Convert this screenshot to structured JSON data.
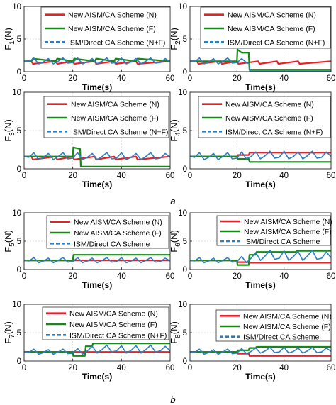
{
  "figure_labels": [
    "a",
    "b"
  ],
  "chart_data": [
    {
      "type": "line",
      "title": "",
      "ylabel": "F1(N)",
      "ylabel_main": "F",
      "ylabel_sub": "1",
      "ylabel_unit": "(N)",
      "xlabel": "Time(s)",
      "xlim": [
        0,
        60
      ],
      "ylim": [
        0,
        10
      ],
      "xticks": [
        "0",
        "20",
        "40",
        "60"
      ],
      "yticks": [
        "0",
        "5",
        "10"
      ],
      "grid": true,
      "legend": "top-right",
      "series": [
        {
          "name": "New AISM/CA Scheme (N)",
          "color": "#e8202a",
          "x": [
            0,
            3,
            3.6,
            13,
            13.6,
            20,
            20.6,
            29,
            29.6,
            37,
            37.6,
            46,
            46.6,
            60
          ],
          "y": [
            1.6,
            1.6,
            1.2,
            1.6,
            1.2,
            1.6,
            1.2,
            1.6,
            1.2,
            1.6,
            1.2,
            1.6,
            1.2,
            1.6
          ]
        },
        {
          "name": "New AISM/CA Scheme (F)",
          "color": "#138a13",
          "x": [
            0,
            3,
            3.6,
            13,
            13.6,
            20,
            20.6,
            29,
            29.6,
            37,
            37.6,
            46,
            46.6,
            60
          ],
          "y": [
            1.6,
            1.6,
            2.0,
            1.6,
            2.0,
            1.6,
            2.0,
            1.6,
            2.0,
            1.6,
            2.0,
            1.6,
            2.0,
            1.6
          ]
        },
        {
          "name": "ISM/Direct CA Scheme  (N+F)",
          "color": "#2a7fc1",
          "x": [
            0,
            2,
            4,
            6,
            8,
            10,
            12,
            14,
            16,
            18,
            20,
            22,
            24,
            26,
            28,
            30,
            32,
            34,
            36,
            38,
            40,
            42,
            44,
            46,
            48,
            50,
            52,
            54,
            56,
            58,
            60
          ],
          "y": [
            1.6,
            1.5,
            2.1,
            1.2,
            1.5,
            2.0,
            1.2,
            1.6,
            2.1,
            1.3,
            1.4,
            2.1,
            1.2,
            1.5,
            2.0,
            1.2,
            1.6,
            2.1,
            1.3,
            1.4,
            2.1,
            1.2,
            1.5,
            2.0,
            1.2,
            1.6,
            2.1,
            1.3,
            1.4,
            2.0,
            1.5
          ]
        }
      ]
    },
    {
      "type": "line",
      "title": "",
      "ylabel": "F2(N)",
      "ylabel_main": "F",
      "ylabel_sub": "2",
      "ylabel_unit": "(N)",
      "xlabel": "Time(s)",
      "xlim": [
        0,
        60
      ],
      "ylim": [
        0,
        10
      ],
      "xticks": [
        "0",
        "20",
        "40",
        "60"
      ],
      "yticks": [
        "0",
        "5",
        "10"
      ],
      "grid": true,
      "legend": "top-right",
      "series": [
        {
          "name": "New AISM/CA Scheme (N)",
          "color": "#e8202a",
          "x": [
            0,
            3,
            3.6,
            13,
            13.6,
            20,
            20.6,
            29,
            29.6,
            37,
            37.6,
            46,
            46.6,
            60
          ],
          "y": [
            1.6,
            1.6,
            1.2,
            1.6,
            1.2,
            1.6,
            1.2,
            1.6,
            1.2,
            1.6,
            1.2,
            1.6,
            1.2,
            1.6
          ]
        },
        {
          "name": "New AISM/CA Scheme (F)",
          "color": "#138a13",
          "x": [
            0,
            20,
            20.2,
            22,
            22.2,
            25,
            25.3,
            60
          ],
          "y": [
            1.6,
            1.6,
            3.4,
            2.9,
            2.9,
            2.9,
            0.3,
            0.3
          ]
        },
        {
          "name": "ISM/Direct CA Scheme  (N+F)",
          "color": "#2a7fc1",
          "x": [
            0,
            2,
            4,
            6,
            8,
            10,
            12,
            14,
            16,
            18,
            20,
            22,
            24,
            25.2,
            25.4,
            28,
            32,
            36,
            40,
            44,
            48,
            52,
            56,
            60
          ],
          "y": [
            1.6,
            1.5,
            2.1,
            1.2,
            1.5,
            2.0,
            1.2,
            1.6,
            2.1,
            1.3,
            1.4,
            2.0,
            1.4,
            1.2,
            0.1,
            0.1,
            0.1,
            0.1,
            0.1,
            0.1,
            0.1,
            0.1,
            0.1,
            0.1
          ]
        }
      ]
    },
    {
      "type": "line",
      "title": "",
      "ylabel": "F3(N)",
      "ylabel_main": "F",
      "ylabel_sub": "3",
      "ylabel_unit": "(N)",
      "xlabel": "Time(s)",
      "xlim": [
        0,
        60
      ],
      "ylim": [
        0,
        10
      ],
      "xticks": [
        "0",
        "20",
        "40",
        "60"
      ],
      "yticks": [
        "0",
        "5",
        "10"
      ],
      "grid": true,
      "legend": "top-right",
      "series": [
        {
          "name": "New AISM/CA Scheme (N)",
          "color": "#e8202a",
          "x": [
            0,
            3,
            3.6,
            13,
            13.6,
            20,
            20.6,
            29,
            29.6,
            37,
            37.6,
            46,
            46.6,
            60
          ],
          "y": [
            1.6,
            1.6,
            1.2,
            1.6,
            1.2,
            1.6,
            1.2,
            1.6,
            1.2,
            1.6,
            1.2,
            1.6,
            1.2,
            1.6
          ]
        },
        {
          "name": "New AISM/CA Scheme (F)",
          "color": "#138a13",
          "x": [
            0,
            20,
            20.2,
            23,
            23.3,
            60
          ],
          "y": [
            1.6,
            1.6,
            2.8,
            2.6,
            0.3,
            0.3
          ]
        },
        {
          "name": "ISM/Direct CA Scheme  (N+F)",
          "color": "#2a7fc1",
          "x": [
            0,
            2,
            4,
            6,
            8,
            10,
            12,
            14,
            16,
            18,
            20,
            22,
            24,
            26,
            28,
            30,
            32,
            34,
            36,
            38,
            40,
            42,
            44,
            46,
            48,
            50,
            52,
            54,
            56,
            58,
            60
          ],
          "y": [
            1.6,
            1.5,
            2.1,
            1.2,
            1.5,
            2.0,
            1.2,
            1.6,
            2.1,
            1.3,
            1.4,
            2.1,
            1.2,
            1.5,
            2.0,
            1.2,
            1.6,
            2.1,
            1.3,
            1.4,
            2.1,
            1.2,
            1.5,
            2.0,
            1.2,
            1.6,
            2.1,
            1.3,
            1.4,
            2.0,
            1.5
          ]
        }
      ]
    },
    {
      "type": "line",
      "title": "",
      "ylabel": "F4(N)",
      "ylabel_main": "F",
      "ylabel_sub": "4",
      "ylabel_unit": "(N)",
      "xlabel": "Time(s)",
      "xlim": [
        0,
        60
      ],
      "ylim": [
        0,
        10
      ],
      "xticks": [
        "0",
        "20",
        "40",
        "60"
      ],
      "yticks": [
        "0",
        "5",
        "10"
      ],
      "grid": true,
      "legend": "top-right",
      "series": [
        {
          "name": "New AISM/CA Scheme (N)",
          "color": "#e8202a",
          "x": [
            0,
            20,
            20.3,
            25,
            25.4,
            60
          ],
          "y": [
            1.6,
            1.6,
            1.8,
            1.8,
            2.1,
            2.1
          ]
        },
        {
          "name": "New AISM/CA Scheme (F)",
          "color": "#138a13",
          "x": [
            0,
            20,
            20.3,
            25,
            25.4,
            60
          ],
          "y": [
            1.6,
            1.6,
            1.3,
            1.3,
            0.9,
            0.9
          ]
        },
        {
          "name": "ISM/Direct CA Scheme  (N+F)",
          "color": "#2a7fc1",
          "x": [
            0,
            2,
            4,
            6,
            8,
            10,
            12,
            14,
            16,
            18,
            20,
            22,
            24,
            26,
            28,
            30,
            32,
            34,
            36,
            38,
            40,
            42,
            44,
            46,
            48,
            50,
            52,
            54,
            56,
            58,
            60
          ],
          "y": [
            1.6,
            1.5,
            2.1,
            1.2,
            1.5,
            2.0,
            1.2,
            1.6,
            2.1,
            1.3,
            1.4,
            2.2,
            1.3,
            1.6,
            2.2,
            1.3,
            1.7,
            2.3,
            1.4,
            1.5,
            2.3,
            1.3,
            1.6,
            2.2,
            1.3,
            1.7,
            2.3,
            1.4,
            1.5,
            2.2,
            1.6
          ]
        }
      ]
    },
    {
      "type": "line",
      "title": "",
      "ylabel": "F5(N)",
      "ylabel_main": "F",
      "ylabel_sub": "5",
      "ylabel_unit": "(N)",
      "xlabel": "Time(s)",
      "xlim": [
        0,
        60
      ],
      "ylim": [
        0,
        10
      ],
      "xticks": [
        "0",
        "20",
        "40",
        "60"
      ],
      "yticks": [
        "0",
        "5",
        "10"
      ],
      "grid": true,
      "legend": "top-right",
      "series": [
        {
          "name": "New AISM/CA Scheme (N)",
          "color": "#e8202a",
          "x": [
            0,
            60
          ],
          "y": [
            1.6,
            1.6
          ]
        },
        {
          "name": "New AISM/CA Scheme (F)",
          "color": "#138a13",
          "x": [
            0,
            20,
            20.3,
            60
          ],
          "y": [
            1.6,
            1.6,
            2.6,
            2.6
          ]
        },
        {
          "name": "ISM/Direct CA Scheme",
          "color": "#2a7fc1",
          "x": [
            0,
            2,
            4,
            6,
            8,
            10,
            12,
            14,
            16,
            18,
            20,
            22,
            24,
            26,
            28,
            30,
            32,
            34,
            36,
            38,
            40,
            42,
            44,
            46,
            48,
            50,
            52,
            54,
            56,
            58,
            60
          ],
          "y": [
            1.6,
            1.5,
            2.1,
            1.2,
            1.5,
            2.0,
            1.2,
            1.6,
            2.1,
            1.3,
            1.4,
            2.1,
            1.2,
            1.5,
            2.0,
            1.2,
            1.6,
            2.1,
            1.3,
            1.4,
            2.1,
            1.2,
            1.5,
            2.0,
            1.2,
            1.6,
            2.1,
            1.3,
            1.4,
            2.0,
            1.5
          ]
        }
      ]
    },
    {
      "type": "line",
      "title": "",
      "ylabel": "F6(N)",
      "ylabel_main": "F",
      "ylabel_sub": "6",
      "ylabel_unit": "(N)",
      "xlabel": "Time(s)",
      "xlim": [
        0,
        60
      ],
      "ylim": [
        0,
        10
      ],
      "xticks": [
        "0",
        "20",
        "40",
        "60"
      ],
      "yticks": [
        "0",
        "5",
        "10"
      ],
      "grid": true,
      "legend": "top-right",
      "series": [
        {
          "name": "New AISM/CA Scheme (N)",
          "color": "#e8202a",
          "x": [
            0,
            20,
            20.3,
            25,
            25.3,
            60
          ],
          "y": [
            1.6,
            1.6,
            1.3,
            1.3,
            1.2,
            1.2
          ]
        },
        {
          "name": "New AISM/CA Scheme (F)",
          "color": "#138a13",
          "x": [
            0,
            20,
            20.2,
            25,
            25.3,
            28,
            28.3,
            45,
            45.3,
            60
          ],
          "y": [
            1.6,
            1.6,
            0.8,
            0.8,
            2.6,
            2.6,
            3.1,
            3.1,
            3.3,
            3.3
          ]
        },
        {
          "name": "ISM/Direct CA Scheme",
          "color": "#2a7fc1",
          "x": [
            0,
            2,
            4,
            6,
            8,
            10,
            12,
            14,
            16,
            18,
            20,
            22,
            24,
            26,
            28,
            30,
            32,
            34,
            36,
            38,
            40,
            42,
            44,
            46,
            48,
            50,
            52,
            54,
            56,
            58,
            60
          ],
          "y": [
            1.6,
            1.5,
            2.1,
            1.2,
            1.5,
            2.0,
            1.2,
            1.6,
            2.1,
            1.3,
            1.4,
            2.3,
            1.2,
            2.0,
            3.0,
            1.6,
            2.4,
            3.4,
            1.8,
            2.0,
            3.3,
            1.6,
            2.3,
            3.2,
            1.6,
            2.4,
            3.4,
            1.8,
            2.0,
            3.1,
            2.1
          ]
        }
      ]
    },
    {
      "type": "line",
      "title": "",
      "ylabel": "F7(N)",
      "ylabel_main": "F",
      "ylabel_sub": "7",
      "ylabel_unit": "(N)",
      "xlabel": "Time(s)",
      "xlim": [
        0,
        60
      ],
      "ylim": [
        0,
        10
      ],
      "xticks": [
        "0",
        "20",
        "40",
        "60"
      ],
      "yticks": [
        "0",
        "5",
        "10"
      ],
      "grid": true,
      "legend": "top-right",
      "series": [
        {
          "name": "New AISM/CA Scheme (N)",
          "color": "#e8202a",
          "x": [
            0,
            60
          ],
          "y": [
            1.6,
            1.6
          ]
        },
        {
          "name": "New AISM/CA Scheme (F)",
          "color": "#138a13",
          "x": [
            0,
            20,
            20.2,
            25,
            25.3,
            28,
            28.3,
            60
          ],
          "y": [
            1.6,
            1.6,
            0.9,
            0.9,
            2.6,
            2.6,
            3.1,
            3.1
          ]
        },
        {
          "name": "ISM/Direct CA Scheme  (N+F)",
          "color": "#2a7fc1",
          "x": [
            0,
            2,
            4,
            6,
            8,
            10,
            12,
            14,
            16,
            18,
            20,
            22,
            24,
            26,
            28,
            30,
            32,
            34,
            36,
            38,
            40,
            42,
            44,
            46,
            48,
            50,
            52,
            54,
            56,
            58,
            60
          ],
          "y": [
            1.6,
            1.5,
            2.1,
            1.2,
            1.5,
            2.0,
            1.2,
            1.6,
            2.1,
            1.3,
            1.4,
            2.2,
            1.2,
            1.8,
            2.6,
            1.4,
            2.0,
            2.8,
            1.6,
            1.8,
            2.7,
            1.4,
            1.9,
            2.7,
            1.4,
            2.0,
            2.8,
            1.6,
            1.8,
            2.6,
            1.8
          ]
        }
      ]
    },
    {
      "type": "line",
      "title": "",
      "ylabel": "F8(N)",
      "ylabel_main": "F",
      "ylabel_sub": "8",
      "ylabel_unit": "(N)",
      "xlabel": "Time(s)",
      "xlim": [
        0,
        60
      ],
      "ylim": [
        0,
        10
      ],
      "xticks": [
        "0",
        "20",
        "40",
        "60"
      ],
      "yticks": [
        "0",
        "5",
        "10"
      ],
      "grid": true,
      "legend": "top-right",
      "series": [
        {
          "name": "New AISM/CA Scheme (N)",
          "color": "#e8202a",
          "x": [
            0,
            20,
            20.3,
            25,
            25.3,
            60
          ],
          "y": [
            1.6,
            1.6,
            1.3,
            1.3,
            0.9,
            0.9
          ]
        },
        {
          "name": "New AISM/CA Scheme (F)",
          "color": "#138a13",
          "x": [
            0,
            20,
            20.3,
            25,
            25.3,
            28,
            28.3,
            60
          ],
          "y": [
            1.6,
            1.6,
            1.9,
            1.9,
            2.3,
            2.3,
            2.5,
            2.5
          ]
        },
        {
          "name": "ISM/Direct CA Scheme",
          "color": "#2a7fc1",
          "x": [
            0,
            2,
            4,
            6,
            8,
            10,
            12,
            14,
            16,
            18,
            20,
            22,
            24,
            26,
            28,
            30,
            32,
            34,
            36,
            38,
            40,
            42,
            44,
            46,
            48,
            50,
            52,
            54,
            56,
            58,
            60
          ],
          "y": [
            1.6,
            1.5,
            2.1,
            1.2,
            1.5,
            2.0,
            1.2,
            1.6,
            2.1,
            1.3,
            1.4,
            2.2,
            1.3,
            1.7,
            2.3,
            1.4,
            1.8,
            2.4,
            1.5,
            1.6,
            2.4,
            1.4,
            1.7,
            2.3,
            1.4,
            1.8,
            2.4,
            1.5,
            1.6,
            2.3,
            1.7
          ]
        }
      ]
    }
  ]
}
